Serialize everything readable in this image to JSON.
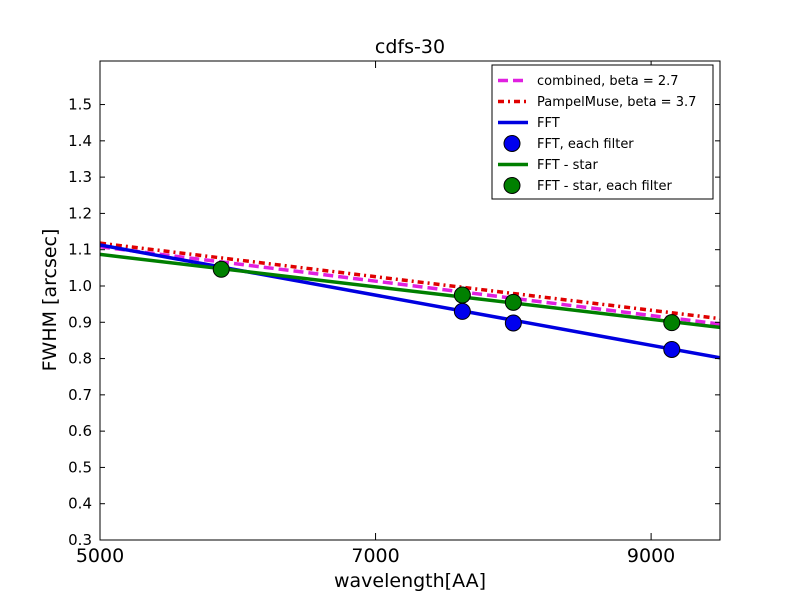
{
  "chart_data": {
    "type": "line",
    "title": "cdfs-30",
    "xlabel": "wavelength[AA]",
    "ylabel": "FWHM [arcsec]",
    "xlim": [
      5000,
      9500
    ],
    "ylim": [
      0.3,
      1.62
    ],
    "x_ticks": [
      5000,
      7000,
      9000
    ],
    "y_ticks": [
      0.3,
      0.4,
      0.5,
      0.6,
      0.7,
      0.8,
      0.9,
      1.0,
      1.1,
      1.2,
      1.3,
      1.4,
      1.5
    ],
    "y_tick_labels": [
      "0.3",
      "0.4",
      "0.5",
      "0.6",
      "0.7",
      "0.8",
      "0.9",
      "1.0",
      "1.1",
      "1.2",
      "1.3",
      "1.4",
      "1.5"
    ],
    "grid": false,
    "legend_position": "top-right",
    "series": [
      {
        "name": "combined, beta = 2.7",
        "kind": "line",
        "style": "dashed",
        "color": "#e020e0",
        "x": [
          5000,
          9500
        ],
        "y": [
          1.108,
          0.895
        ]
      },
      {
        "name": "PampelMuse, beta = 3.7",
        "kind": "line",
        "style": "dashdot",
        "color": "#e00000",
        "x": [
          5000,
          9500
        ],
        "y": [
          1.118,
          0.91
        ]
      },
      {
        "name": "FFT",
        "kind": "line",
        "style": "solid",
        "color": "#0000e0",
        "x": [
          5000,
          9500
        ],
        "y": [
          1.113,
          0.802
        ]
      },
      {
        "name": "FFT, each filter",
        "kind": "points",
        "color": "#0000ee",
        "x": [
          7630,
          8000,
          9150
        ],
        "y": [
          0.93,
          0.898,
          0.825
        ]
      },
      {
        "name": "FFT - star",
        "kind": "line",
        "style": "solid",
        "color": "#007f00",
        "x": [
          5000,
          9500
        ],
        "y": [
          1.087,
          0.886
        ]
      },
      {
        "name": "FFT - star, each filter",
        "kind": "points",
        "color": "#008000",
        "x": [
          5880,
          7630,
          8000,
          9150
        ],
        "y": [
          1.046,
          0.975,
          0.955,
          0.899
        ]
      }
    ]
  }
}
